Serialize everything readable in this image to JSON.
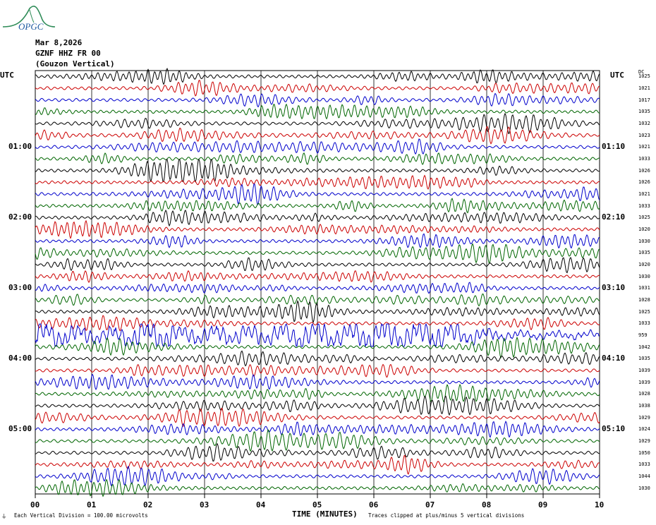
{
  "header": {
    "date": "Mar 8,2026",
    "station": "GZNF HHZ FR 00",
    "component": "(Gouzon Vertical)",
    "logo_text": "OPGC"
  },
  "utc_left_label": "UTC",
  "utc_right_label": "UTC",
  "dc_header": "DC",
  "hour_labels_left": [
    "01:00",
    "02:00",
    "03:00",
    "04:00",
    "05:00"
  ],
  "hour_labels_right": [
    "01:10",
    "02:10",
    "03:10",
    "04:10",
    "05:10"
  ],
  "dc_values": [
    "1025",
    "1021",
    "1017",
    "1035",
    "1032",
    "1023",
    "1021",
    "1033",
    "1026",
    "1026",
    "1021",
    "1033",
    "1025",
    "1020",
    "1030",
    "1035",
    "1020",
    "1030",
    "1031",
    "1028",
    "1025",
    "1033",
    "959",
    "1042",
    "1035",
    "1039",
    "1039",
    "1028",
    "1038",
    "1029",
    "1024",
    "1029",
    "1050",
    "1033",
    "1044",
    "1030"
  ],
  "x_axis": {
    "title": "TIME (MINUTES)",
    "ticks": [
      "00",
      "01",
      "02",
      "03",
      "04",
      "05",
      "06",
      "07",
      "08",
      "09",
      "10"
    ]
  },
  "footer": {
    "left": "Each Vertical Division =  100.00 microvolts",
    "right": "Traces clipped at plus/minus 5 vertical divisions",
    "corner_mark": "⏚"
  },
  "colors": {
    "black": "#000000",
    "red": "#cc0000",
    "blue": "#0000cc",
    "green": "#006600",
    "logo_green": "#2e8b57",
    "logo_blue": "#1e5aa0"
  },
  "chart_data": {
    "type": "line",
    "title": "",
    "xlabel": "TIME (MINUTES)",
    "ylabel": "",
    "xlim": [
      0,
      10
    ],
    "trace_count": 36,
    "trace_minutes": 10,
    "trace_colors_cycle": [
      "black",
      "red",
      "blue",
      "green"
    ],
    "clipping": "plus/minus 5 vertical divisions",
    "vertical_division_microvolts": 100.0
  }
}
